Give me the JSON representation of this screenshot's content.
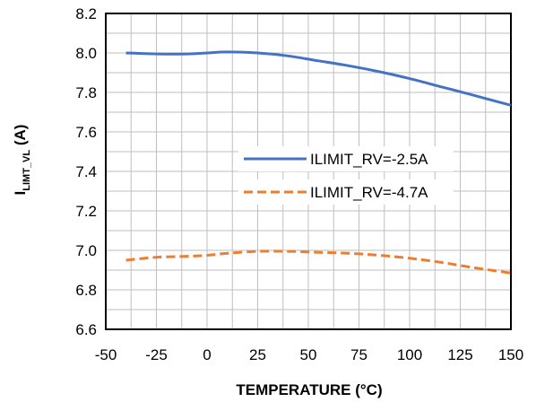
{
  "chart_data": {
    "type": "line",
    "xlabel": "TEMPERATURE (°C)",
    "ylabel": {
      "main": "I",
      "subscript": "LIMT_VL",
      "unit": " (A)"
    },
    "xlim": [
      -50,
      150
    ],
    "ylim": [
      6.6,
      8.2
    ],
    "x_ticks": [
      "-50",
      "-25",
      "0",
      "25",
      "50",
      "75",
      "100",
      "125",
      "150"
    ],
    "y_ticks": [
      "6.6",
      "6.8",
      "7.0",
      "7.2",
      "7.4",
      "7.6",
      "7.8",
      "8.0",
      "8.2"
    ],
    "x_minor_step": 12.5,
    "y_minor_step": 0.1,
    "grid": true,
    "legend_position": "right-center",
    "series": [
      {
        "name": "ILIMIT_RV=-2.5A",
        "color": "#4472C4",
        "style": "solid",
        "x": [
          -40,
          -25,
          -10,
          0,
          10,
          25,
          40,
          55,
          70,
          85,
          100,
          115,
          130,
          150
        ],
        "y": [
          8.0,
          7.995,
          7.995,
          8.0,
          8.005,
          8.0,
          7.985,
          7.96,
          7.935,
          7.905,
          7.87,
          7.83,
          7.79,
          7.735
        ]
      },
      {
        "name": "ILIMIT_RV=-4.7A",
        "color": "#ED7D31",
        "style": "dashed",
        "x": [
          -40,
          -25,
          -10,
          0,
          10,
          25,
          40,
          55,
          70,
          85,
          100,
          115,
          130,
          150
        ],
        "y": [
          6.95,
          6.965,
          6.97,
          6.975,
          6.985,
          6.995,
          6.995,
          6.99,
          6.985,
          6.975,
          6.96,
          6.94,
          6.915,
          6.885
        ]
      }
    ]
  }
}
